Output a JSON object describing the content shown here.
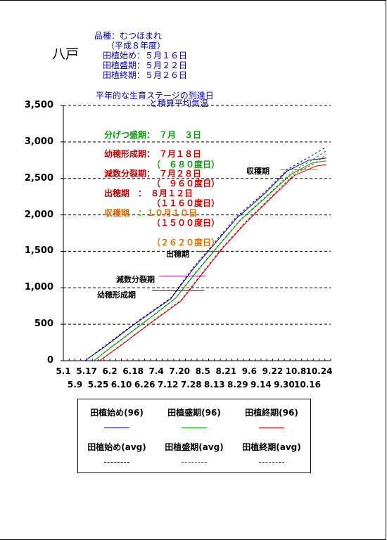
{
  "location": "八戸",
  "variety_info": [
    "品種：むつほまれ",
    "（平成８年度）",
    "田植始め：５月１６日",
    "田植盛期：５月２２日",
    "田植終期：５月２６日"
  ],
  "chart_title_lines": [
    "平年的な生育ステージの到達日",
    "と積算平均気温"
  ],
  "stage_annotations": [
    {
      "line1": "分げつ盛期：　７月　３日",
      "line2": "（　６８０度日）",
      "color": "#00a000"
    },
    {
      "line1": "幼穂形成期：　７月１８日",
      "line2": "（　９６０度日）",
      "color": "#d00000"
    },
    {
      "line1": "減数分裂期：　７月２８日",
      "line2": "（１１６０度日）",
      "color": "#d00000"
    },
    {
      "line1": "出穂期　：　８月１２日",
      "line2": "（１５００度日）",
      "color": "#d00000"
    },
    {
      "line1": "収穫期　：１０月１０日",
      "line2": "（２６２０度日）",
      "color": "#e07000"
    }
  ],
  "stage_labels": [
    "収穫期",
    "出穂期",
    "減数分裂期",
    "幼穂形成期"
  ],
  "legend": [
    {
      "label": "田植始め(96)",
      "color": "#0000a0",
      "style": "solid"
    },
    {
      "label": "田植盛期(96)",
      "color": "#00a000",
      "style": "solid"
    },
    {
      "label": "田植終期(96)",
      "color": "#e00000",
      "style": "solid"
    },
    {
      "label": "田植始め(avg)",
      "color": "#0000a0",
      "style": "dashed"
    },
    {
      "label": "田植盛期(avg)",
      "color": "#00a000",
      "style": "dashed"
    },
    {
      "label": "田植終期(avg)",
      "color": "#e00000",
      "style": "dashed"
    }
  ],
  "chart_data": {
    "type": "line",
    "x_unit": "day-of-year",
    "ylim": [
      0,
      3500
    ],
    "xlim": [
      121,
      305
    ],
    "yticks": [
      0,
      500,
      1000,
      1500,
      2000,
      2500,
      3000,
      3500
    ],
    "ytick_labels": [
      "0",
      "500",
      "1,000",
      "1,500",
      "2,000",
      "2,500",
      "3,000",
      "3,500"
    ],
    "xticks_row1": [
      {
        "label": "5.1",
        "x": 121
      },
      {
        "label": "5.17",
        "x": 137
      },
      {
        "label": "6.2",
        "x": 153
      },
      {
        "label": "6.18",
        "x": 169
      },
      {
        "label": "7.4",
        "x": 185
      },
      {
        "label": "7.20",
        "x": 201
      },
      {
        "label": "8.5",
        "x": 217
      },
      {
        "label": "8.21",
        "x": 233
      },
      {
        "label": "9.6",
        "x": 249
      },
      {
        "label": "9.22",
        "x": 265
      },
      {
        "label": "10.8",
        "x": 281
      },
      {
        "label": "10.24",
        "x": 297
      }
    ],
    "xticks_row2": [
      {
        "label": "5.9",
        "x": 129
      },
      {
        "label": "5.25",
        "x": 145
      },
      {
        "label": "6.10",
        "x": 161
      },
      {
        "label": "6.26",
        "x": 177
      },
      {
        "label": "7.12",
        "x": 193
      },
      {
        "label": "7.28",
        "x": 209
      },
      {
        "label": "8.13",
        "x": 225
      },
      {
        "label": "8.29",
        "x": 241
      },
      {
        "label": "9.14",
        "x": 257
      },
      {
        "label": "9.30",
        "x": 273
      },
      {
        "label": "10.16",
        "x": 289
      }
    ],
    "grid": "horizontal dashed",
    "series": [
      {
        "name": "田植始め(96)",
        "color": "#0000a0",
        "style": "solid",
        "points": [
          [
            136,
            0
          ],
          [
            150,
            200
          ],
          [
            170,
            500
          ],
          [
            195,
            850
          ],
          [
            210,
            1250
          ],
          [
            225,
            1600
          ],
          [
            240,
            1950
          ],
          [
            260,
            2300
          ],
          [
            275,
            2600
          ],
          [
            290,
            2750
          ],
          [
            302,
            2780
          ]
        ]
      },
      {
        "name": "田植盛期(96)",
        "color": "#00a000",
        "style": "solid",
        "points": [
          [
            142,
            0
          ],
          [
            155,
            200
          ],
          [
            175,
            500
          ],
          [
            198,
            850
          ],
          [
            212,
            1200
          ],
          [
            228,
            1580
          ],
          [
            243,
            1930
          ],
          [
            262,
            2270
          ],
          [
            278,
            2560
          ],
          [
            292,
            2710
          ],
          [
            302,
            2740
          ]
        ]
      },
      {
        "name": "田植終期(96)",
        "color": "#e00000",
        "style": "solid",
        "points": [
          [
            146,
            0
          ],
          [
            160,
            200
          ],
          [
            180,
            500
          ],
          [
            202,
            820
          ],
          [
            215,
            1150
          ],
          [
            231,
            1550
          ],
          [
            247,
            1900
          ],
          [
            265,
            2250
          ],
          [
            280,
            2540
          ],
          [
            295,
            2670
          ],
          [
            302,
            2690
          ]
        ]
      },
      {
        "name": "田植始め(avg)",
        "color": "#0000a0",
        "style": "dashed",
        "points": [
          [
            136,
            0
          ],
          [
            150,
            210
          ],
          [
            170,
            510
          ],
          [
            195,
            860
          ],
          [
            210,
            1270
          ],
          [
            225,
            1620
          ],
          [
            240,
            1970
          ],
          [
            260,
            2320
          ],
          [
            275,
            2620
          ],
          [
            290,
            2790
          ],
          [
            302,
            2930
          ]
        ]
      },
      {
        "name": "田植盛期(avg)",
        "color": "#00a000",
        "style": "dashed",
        "points": [
          [
            142,
            0
          ],
          [
            155,
            205
          ],
          [
            175,
            505
          ],
          [
            198,
            855
          ],
          [
            212,
            1210
          ],
          [
            228,
            1590
          ],
          [
            243,
            1940
          ],
          [
            262,
            2280
          ],
          [
            278,
            2580
          ],
          [
            292,
            2750
          ],
          [
            302,
            2880
          ]
        ]
      },
      {
        "name": "田植終期(avg)",
        "color": "#e00000",
        "style": "dashed",
        "points": [
          [
            146,
            0
          ],
          [
            160,
            205
          ],
          [
            180,
            505
          ],
          [
            202,
            830
          ],
          [
            215,
            1165
          ],
          [
            231,
            1565
          ],
          [
            247,
            1915
          ],
          [
            265,
            2265
          ],
          [
            280,
            2560
          ],
          [
            295,
            2720
          ],
          [
            302,
            2830
          ]
        ]
      }
    ],
    "stage_markers": [
      {
        "name": "収穫期",
        "y": 2620,
        "x1": 270,
        "x2": 296,
        "color": "#e07000"
      },
      {
        "name": "出穂期",
        "y": 1500,
        "x1": 214,
        "x2": 232,
        "color": "#d00000"
      },
      {
        "name": "減数分裂期",
        "y": 1160,
        "x1": 187,
        "x2": 219,
        "color": "#b000b0"
      },
      {
        "name": "幼穂形成期",
        "y": 960,
        "x1": 182,
        "x2": 218,
        "color": "#d00000"
      }
    ]
  }
}
